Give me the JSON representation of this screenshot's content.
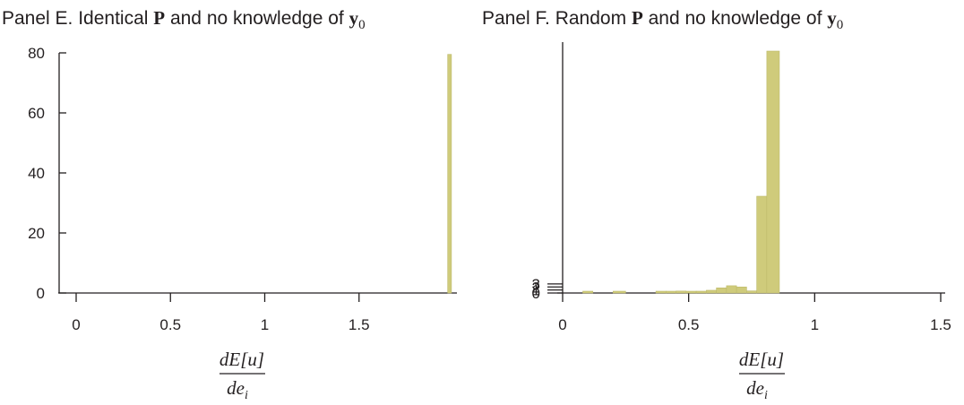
{
  "panels": {
    "e": {
      "prefix": "Panel E. Identical ",
      "bold": "P",
      "middle": " and no knowledge of ",
      "vec": "y",
      "sub": "0"
    },
    "f": {
      "prefix": "Panel F. Random ",
      "bold": "P",
      "middle": " and no knowledge of ",
      "vec": "y",
      "sub": "0"
    }
  },
  "xlabel": {
    "numerator": "dE[u]",
    "denominator": "de",
    "denominator_sub": "i"
  },
  "colors": {
    "bar": "#cfcb7b",
    "bar_stroke": "#bdb96a",
    "axis": "#231f20"
  },
  "chart_data": [
    {
      "type": "bar",
      "title": "Panel E. Identical P and no knowledge of y0",
      "xlabel": "dE[u]/de_i",
      "ylabel": "",
      "xlim": [
        0,
        2
      ],
      "ylim": [
        0,
        80
      ],
      "xticks": [
        0,
        0.5,
        1,
        1.5
      ],
      "xtick_labels": [
        "0",
        "0.5",
        "1",
        "1.5"
      ],
      "yticks": [
        0,
        20,
        40,
        60,
        80
      ],
      "ytick_labels": [
        "0",
        "20",
        "40",
        "60",
        "80"
      ],
      "bins": [
        {
          "x0": 1.97,
          "x1": 1.99,
          "value": 79.5
        }
      ],
      "grid": false
    },
    {
      "type": "bar",
      "title": "Panel F. Random P and no knowledge of y0",
      "xlabel": "dE[u]/de_i",
      "ylabel": "",
      "xlim": [
        0,
        1.5
      ],
      "ylim": [
        0,
        80
      ],
      "xticks": [
        0,
        0.5,
        1,
        1.5
      ],
      "xtick_labels": [
        "0",
        "0.5",
        "1",
        "1.5"
      ],
      "yticks": [
        0,
        1,
        2,
        3
      ],
      "ytick_labels": [
        "0",
        "1",
        "2",
        "3"
      ],
      "bins": [
        {
          "x0": 0.08,
          "x1": 0.12,
          "value": 0.1
        },
        {
          "x0": 0.2,
          "x1": 0.25,
          "value": 0.1
        },
        {
          "x0": 0.37,
          "x1": 0.41,
          "value": 0.05
        },
        {
          "x0": 0.41,
          "x1": 0.45,
          "value": 0.55
        },
        {
          "x0": 0.45,
          "x1": 0.49,
          "value": 0.65
        },
        {
          "x0": 0.49,
          "x1": 0.53,
          "value": 0.55
        },
        {
          "x0": 0.53,
          "x1": 0.57,
          "value": 0.6
        },
        {
          "x0": 0.57,
          "x1": 0.61,
          "value": 0.9
        },
        {
          "x0": 0.61,
          "x1": 0.65,
          "value": 1.7
        },
        {
          "x0": 0.65,
          "x1": 0.69,
          "value": 2.4
        },
        {
          "x0": 0.69,
          "x1": 0.73,
          "value": 2.0
        },
        {
          "x0": 0.73,
          "x1": 0.77,
          "value": 0.7
        },
        {
          "x0": 0.77,
          "x1": 0.81,
          "value": 32
        },
        {
          "x0": 0.81,
          "x1": 0.86,
          "value": 80
        }
      ],
      "grid": false
    }
  ]
}
